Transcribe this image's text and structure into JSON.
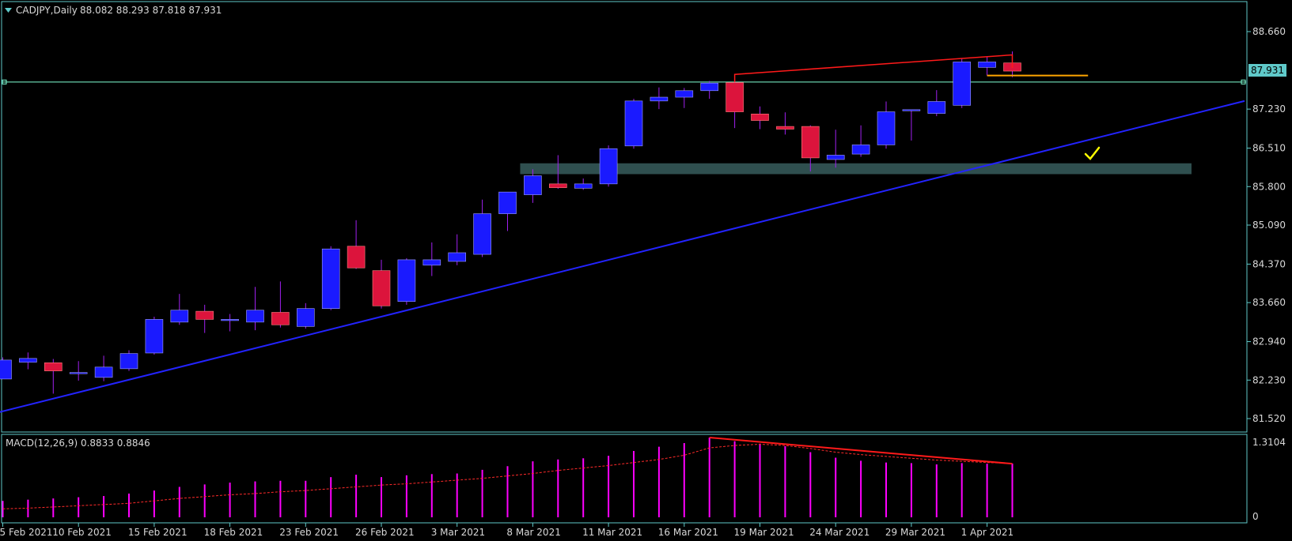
{
  "header": {
    "symbol": "CADJPY,Daily",
    "ohlc": "88.082 88.293 87.818 87.931"
  },
  "price_axis": {
    "ticks": [
      "88.660",
      "87.230",
      "86.510",
      "85.800",
      "85.090",
      "84.370",
      "83.660",
      "82.940",
      "82.230",
      "81.520"
    ],
    "current_price": "87.931"
  },
  "macd": {
    "label": "MACD(12,26,9) 0.8833 0.8846",
    "axis_top": "1.3104",
    "axis_zero": "0"
  },
  "date_axis": {
    "labels": [
      "5 Feb 2021",
      "10 Feb 2021",
      "15 Feb 2021",
      "18 Feb 2021",
      "23 Feb 2021",
      "26 Feb 2021",
      "3 Mar 2021",
      "8 Mar 2021",
      "11 Mar 2021",
      "16 Mar 2021",
      "19 Mar 2021",
      "24 Mar 2021",
      "29 Mar 2021",
      "1 Apr 2021"
    ]
  },
  "colors": {
    "background": "#000000",
    "frame": "#5fc9c9",
    "bull": "#1a1aff",
    "bear": "#dc143c",
    "wick": "#a020f0",
    "trendline": "#2323ff",
    "zone": "#2f4f4f",
    "macd_hist": "#ff00ff",
    "macd_signal": "#ff2a2a",
    "divergence": "#ff1a1a",
    "support_line": "#ffa500",
    "checkmark": "#ffff00"
  },
  "chart_data": {
    "type": "candlestick",
    "symbol": "CADJPY",
    "timeframe": "Daily",
    "y_range": [
      81.2,
      88.9
    ],
    "candles": [
      {
        "o": 82.25,
        "h": 82.65,
        "l": 82.25,
        "c": 82.6
      },
      {
        "o": 82.56,
        "h": 82.74,
        "l": 82.43,
        "c": 82.63
      },
      {
        "o": 82.55,
        "h": 82.62,
        "l": 81.98,
        "c": 82.4
      },
      {
        "o": 82.35,
        "h": 82.58,
        "l": 82.22,
        "c": 82.37
      },
      {
        "o": 82.28,
        "h": 82.68,
        "l": 82.21,
        "c": 82.47
      },
      {
        "o": 82.44,
        "h": 82.78,
        "l": 82.4,
        "c": 82.72
      },
      {
        "o": 82.73,
        "h": 83.4,
        "l": 82.7,
        "c": 83.35
      },
      {
        "o": 83.3,
        "h": 83.82,
        "l": 83.25,
        "c": 83.52
      },
      {
        "o": 83.5,
        "h": 83.62,
        "l": 83.1,
        "c": 83.35
      },
      {
        "o": 83.33,
        "h": 83.45,
        "l": 83.13,
        "c": 83.35
      },
      {
        "o": 83.3,
        "h": 83.95,
        "l": 83.15,
        "c": 83.52
      },
      {
        "o": 83.48,
        "h": 84.05,
        "l": 83.2,
        "c": 83.25
      },
      {
        "o": 83.22,
        "h": 83.65,
        "l": 83.18,
        "c": 83.55
      },
      {
        "o": 83.55,
        "h": 84.7,
        "l": 83.52,
        "c": 84.65
      },
      {
        "o": 84.7,
        "h": 85.18,
        "l": 84.28,
        "c": 84.3
      },
      {
        "o": 84.25,
        "h": 84.45,
        "l": 83.55,
        "c": 83.6
      },
      {
        "o": 83.68,
        "h": 84.48,
        "l": 83.62,
        "c": 84.45
      },
      {
        "o": 84.35,
        "h": 84.77,
        "l": 84.15,
        "c": 84.45
      },
      {
        "o": 84.42,
        "h": 84.92,
        "l": 84.35,
        "c": 84.58
      },
      {
        "o": 84.55,
        "h": 85.56,
        "l": 84.5,
        "c": 85.3
      },
      {
        "o": 85.3,
        "h": 85.68,
        "l": 84.98,
        "c": 85.7
      },
      {
        "o": 85.65,
        "h": 86.12,
        "l": 85.5,
        "c": 86.0
      },
      {
        "o": 85.85,
        "h": 86.38,
        "l": 85.76,
        "c": 85.78
      },
      {
        "o": 85.77,
        "h": 85.95,
        "l": 85.74,
        "c": 85.85
      },
      {
        "o": 85.85,
        "h": 86.56,
        "l": 85.8,
        "c": 86.5
      },
      {
        "o": 86.55,
        "h": 87.42,
        "l": 86.5,
        "c": 87.38
      },
      {
        "o": 87.38,
        "h": 87.63,
        "l": 87.23,
        "c": 87.45
      },
      {
        "o": 87.45,
        "h": 87.62,
        "l": 87.25,
        "c": 87.57
      },
      {
        "o": 87.57,
        "h": 87.75,
        "l": 87.42,
        "c": 87.71
      },
      {
        "o": 87.72,
        "h": 87.78,
        "l": 86.88,
        "c": 87.18
      },
      {
        "o": 87.14,
        "h": 87.28,
        "l": 86.86,
        "c": 87.02
      },
      {
        "o": 86.91,
        "h": 87.17,
        "l": 86.76,
        "c": 86.86
      },
      {
        "o": 86.91,
        "h": 86.93,
        "l": 86.08,
        "c": 86.33
      },
      {
        "o": 86.3,
        "h": 86.85,
        "l": 86.15,
        "c": 86.38
      },
      {
        "o": 86.4,
        "h": 86.93,
        "l": 86.35,
        "c": 86.57
      },
      {
        "o": 86.57,
        "h": 87.37,
        "l": 86.5,
        "c": 87.18
      },
      {
        "o": 87.21,
        "h": 87.22,
        "l": 86.65,
        "c": 87.22
      },
      {
        "o": 87.15,
        "h": 87.58,
        "l": 87.1,
        "c": 87.37
      },
      {
        "o": 87.3,
        "h": 88.17,
        "l": 87.25,
        "c": 88.1
      },
      {
        "o": 88.0,
        "h": 88.19,
        "l": 87.85,
        "c": 88.1
      },
      {
        "o": 88.082,
        "h": 88.293,
        "l": 87.818,
        "c": 87.931
      }
    ],
    "trendline": {
      "from": {
        "index": -0.3,
        "price": 81.62
      },
      "to": {
        "index": 49.2,
        "price": 87.38
      }
    },
    "horizontal_line": 87.73,
    "demand_zone": {
      "from_index": 20.5,
      "to_index": 47.1,
      "low": 86.03,
      "high": 86.23
    },
    "resistance_line": {
      "from": {
        "index": 29,
        "price": 87.87
      },
      "to": {
        "index": 40,
        "price": 88.23
      }
    },
    "support_line": {
      "from_index": 39,
      "to_index": 43,
      "price": 87.85
    },
    "macd_range": [
      0,
      1.3104
    ],
    "macd_histogram": [
      0.27,
      0.29,
      0.31,
      0.33,
      0.35,
      0.39,
      0.44,
      0.5,
      0.54,
      0.57,
      0.59,
      0.6,
      0.6,
      0.66,
      0.7,
      0.66,
      0.69,
      0.71,
      0.72,
      0.78,
      0.84,
      0.92,
      0.95,
      0.97,
      1.01,
      1.09,
      1.16,
      1.22,
      1.31,
      1.25,
      1.21,
      1.17,
      1.07,
      0.98,
      0.93,
      0.9,
      0.89,
      0.87,
      0.89,
      0.88,
      0.883
    ],
    "macd_signal": [
      0.14,
      0.15,
      0.17,
      0.19,
      0.21,
      0.23,
      0.27,
      0.31,
      0.34,
      0.37,
      0.39,
      0.42,
      0.44,
      0.47,
      0.5,
      0.53,
      0.55,
      0.58,
      0.61,
      0.64,
      0.68,
      0.72,
      0.77,
      0.81,
      0.85,
      0.9,
      0.95,
      1.02,
      1.14,
      1.18,
      1.2,
      1.18,
      1.13,
      1.07,
      1.03,
      1.0,
      0.97,
      0.94,
      0.92,
      0.9,
      0.885
    ],
    "macd_divergence_line": {
      "from": {
        "index": 28,
        "value": 1.31
      },
      "to": {
        "index": 40,
        "value": 0.88
      }
    }
  }
}
